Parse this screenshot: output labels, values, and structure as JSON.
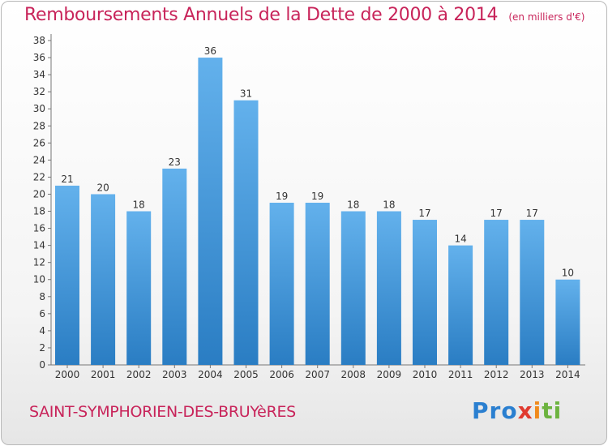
{
  "chart_data": {
    "type": "bar",
    "title": "Remboursements Annuels de la Dette de 2000 à 2014",
    "subtitle": "(en milliers d'€)",
    "categories": [
      "2000",
      "2001",
      "2002",
      "2003",
      "2004",
      "2005",
      "2006",
      "2007",
      "2008",
      "2009",
      "2010",
      "2011",
      "2012",
      "2013",
      "2014"
    ],
    "values": [
      21,
      20,
      18,
      23,
      36,
      31,
      19,
      19,
      18,
      18,
      17,
      14,
      17,
      17,
      10
    ],
    "ylim": [
      0,
      38
    ],
    "yticks": [
      0,
      2,
      4,
      6,
      8,
      10,
      12,
      14,
      16,
      18,
      20,
      22,
      24,
      26,
      28,
      30,
      32,
      34,
      36,
      38
    ],
    "grid": false,
    "bar_color_top": "#63b1ec",
    "bar_color_bottom": "#2a7dc3",
    "title_color": "#c8245a"
  },
  "footer": {
    "city": "SAINT-SYMPHORIEN-DES-BRUYèRES",
    "logo": [
      "Pro",
      "x",
      "i",
      "ti"
    ]
  }
}
